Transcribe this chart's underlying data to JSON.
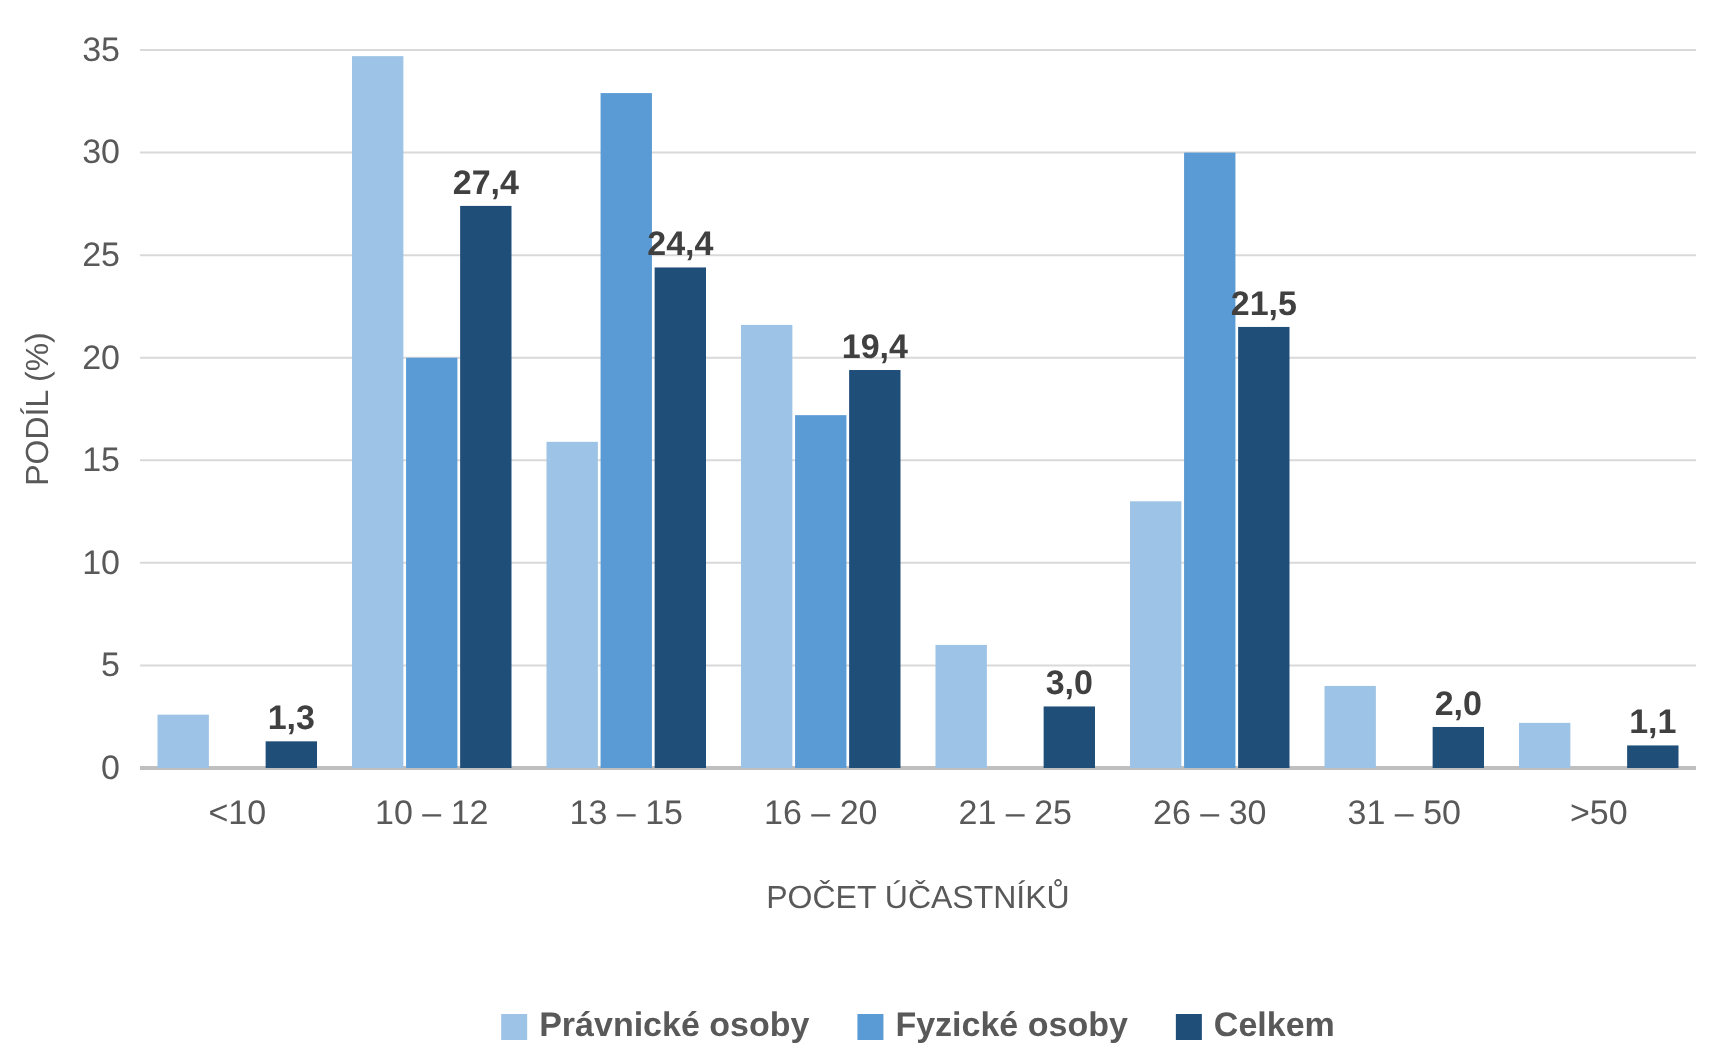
{
  "chart_data": {
    "type": "bar",
    "xlabel": "POČET ÚČASTNÍKŮ",
    "ylabel": "PODÍL (%)",
    "categories": [
      "<10",
      "10 – 12",
      "13 – 15",
      "16 – 20",
      "21 – 25",
      "26 – 30",
      "31 – 50",
      ">50"
    ],
    "series": [
      {
        "name": "Právnické osoby",
        "color": "#9dc3e6",
        "values": [
          2.6,
          34.7,
          15.9,
          21.6,
          6.0,
          13.0,
          4.0,
          2.2
        ]
      },
      {
        "name": "Fyzické osoby",
        "color": "#5b9bd5",
        "values": [
          0,
          20.0,
          32.9,
          17.2,
          0,
          30.0,
          0,
          0
        ]
      },
      {
        "name": "Celkem",
        "color": "#1f4e79",
        "values": [
          1.3,
          27.4,
          24.4,
          19.4,
          3.0,
          21.5,
          2.0,
          1.1
        ],
        "value_labels": [
          "1,3",
          "27,4",
          "24,4",
          "19,4",
          "3,0",
          "21,5",
          "2,0",
          "1,1"
        ]
      }
    ],
    "ylim": [
      0,
      35
    ],
    "yticks": [
      0,
      5,
      10,
      15,
      20,
      25,
      30,
      35
    ],
    "grid": "y",
    "legend": "bottom"
  }
}
